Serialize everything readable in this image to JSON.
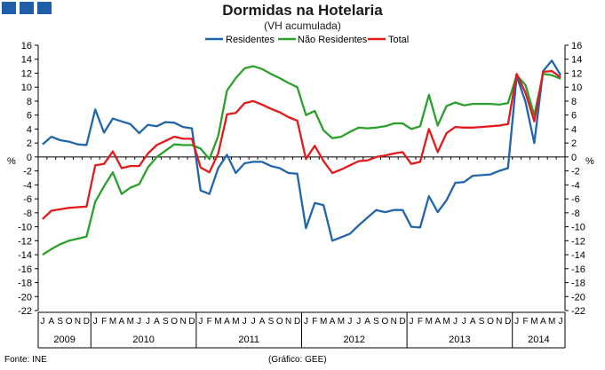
{
  "title": "Dormidas na Hotelaria",
  "subtitle": "(VH acumulada)",
  "footer": {
    "source": "Fonte: INE",
    "credit": "(Gráfico: GEE)"
  },
  "colors": {
    "residentes": "#2166ac",
    "nao_residentes": "#2ca02c",
    "total": "#e31a1c",
    "corner": "#1f5fa8"
  },
  "chart_data": {
    "type": "line",
    "title": "Dormidas na Hotelaria",
    "subtitle": "(VH acumulada)",
    "ylabel": "%",
    "ylim": [
      -22,
      16
    ],
    "yticks": [
      16,
      14,
      12,
      10,
      8,
      6,
      4,
      2,
      0,
      -2,
      -4,
      -6,
      -8,
      -10,
      -12,
      -14,
      -16,
      -18,
      -20,
      -22
    ],
    "legend_position": "top-center",
    "categories": [
      "J",
      "A",
      "S",
      "O",
      "N",
      "D",
      "J",
      "F",
      "M",
      "A",
      "M",
      "J",
      "J",
      "A",
      "S",
      "O",
      "N",
      "D",
      "J",
      "F",
      "M",
      "A",
      "M",
      "J",
      "J",
      "A",
      "S",
      "O",
      "N",
      "D",
      "J",
      "F",
      "M",
      "A",
      "M",
      "J",
      "J",
      "A",
      "S",
      "O",
      "N",
      "D",
      "J",
      "F",
      "M",
      "A",
      "M",
      "J",
      "J",
      "A",
      "S",
      "O",
      "N",
      "D",
      "J",
      "F",
      "M",
      "A",
      "M",
      "J"
    ],
    "years": [
      {
        "label": "2009",
        "count": 6
      },
      {
        "label": "2010",
        "count": 12
      },
      {
        "label": "2011",
        "count": 12
      },
      {
        "label": "2012",
        "count": 12
      },
      {
        "label": "2013",
        "count": 12
      },
      {
        "label": "2014",
        "count": 6
      }
    ],
    "series": [
      {
        "name": "Residentes",
        "values": [
          1.8,
          2.9,
          2.4,
          2.2,
          1.8,
          1.7,
          6.8,
          3.5,
          5.5,
          5.1,
          4.7,
          3.4,
          4.6,
          4.4,
          5.0,
          4.9,
          4.3,
          4.1,
          -4.8,
          -5.3,
          -1.6,
          0.3,
          -2.3,
          -0.9,
          -0.7,
          -0.7,
          -1.3,
          -1.6,
          -2.3,
          -2.4,
          -10.2,
          -6.6,
          -6.9,
          -12.0,
          -11.5,
          -11.0,
          -9.8,
          -8.7,
          -7.6,
          -7.9,
          -7.6,
          -7.6,
          -10.0,
          -10.1,
          -5.6,
          -7.9,
          -6.2,
          -3.7,
          -3.6,
          -2.7,
          -2.6,
          -2.5,
          -2.0,
          -1.6,
          11.6,
          7.9,
          2.0,
          12.3,
          13.8,
          11.7
        ]
      },
      {
        "name": "Não Residentes",
        "values": [
          -14.0,
          -13.2,
          -12.5,
          -12.0,
          -11.7,
          -11.4,
          -6.4,
          -4.2,
          -2.2,
          -5.3,
          -4.4,
          -3.9,
          -1.5,
          0.0,
          0.9,
          1.8,
          1.7,
          1.7,
          1.2,
          -0.3,
          3.0,
          9.5,
          11.3,
          12.7,
          13.0,
          12.6,
          11.9,
          11.3,
          10.6,
          10.0,
          6.0,
          6.6,
          3.8,
          2.7,
          2.9,
          3.6,
          4.2,
          4.1,
          4.2,
          4.4,
          4.8,
          4.8,
          4.0,
          4.4,
          8.9,
          4.5,
          7.3,
          7.8,
          7.4,
          7.6,
          7.6,
          7.6,
          7.5,
          7.7,
          11.7,
          10.3,
          6.0,
          11.9,
          11.7,
          11.2
        ]
      },
      {
        "name": "Total",
        "values": [
          -8.9,
          -7.7,
          -7.5,
          -7.3,
          -7.2,
          -7.1,
          -1.2,
          -1.0,
          0.8,
          -1.6,
          -1.3,
          -1.3,
          0.5,
          1.7,
          2.3,
          2.9,
          2.6,
          2.6,
          -1.5,
          -2.2,
          0.5,
          6.1,
          6.3,
          7.7,
          8.0,
          7.5,
          6.9,
          6.4,
          5.7,
          5.2,
          -0.3,
          1.6,
          -0.6,
          -2.3,
          -1.8,
          -1.2,
          -0.6,
          -0.5,
          0.0,
          0.2,
          0.5,
          0.7,
          -1.0,
          -0.7,
          4.0,
          0.7,
          3.4,
          4.3,
          4.2,
          4.2,
          4.3,
          4.4,
          4.5,
          4.7,
          11.9,
          9.2,
          5.1,
          12.2,
          12.3,
          11.4
        ]
      }
    ],
    "grid": false
  }
}
